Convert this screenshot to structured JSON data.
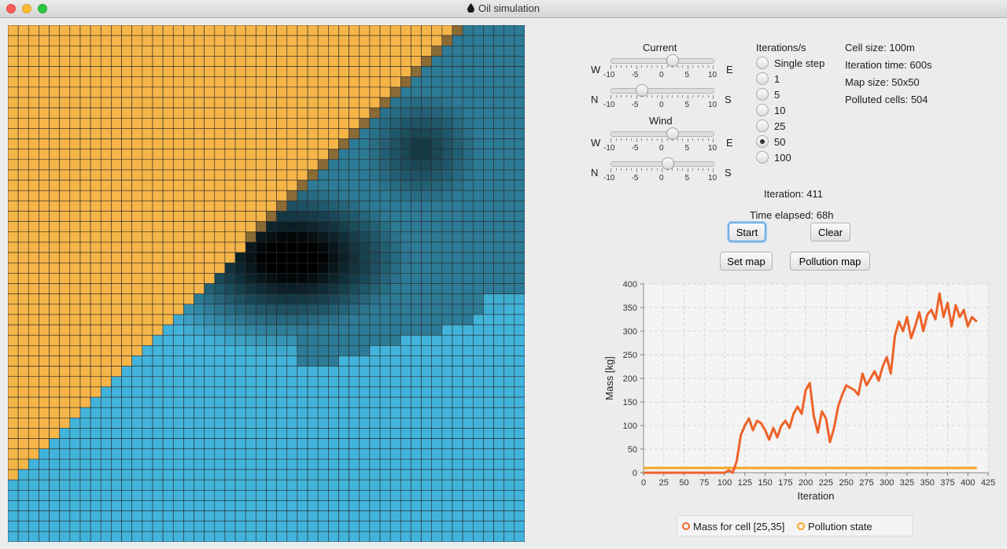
{
  "window": {
    "title": "Oil simulation"
  },
  "map": {
    "rows": 50,
    "cols": 50,
    "colors": {
      "land": "#f5b548",
      "water": "#42b4db",
      "border": "#2b2b2b"
    }
  },
  "controls": {
    "current_label": "Current",
    "wind_label": "Wind",
    "dir_w": "W",
    "dir_e": "E",
    "dir_n": "N",
    "dir_s": "S",
    "ticks": [
      "-10",
      "-5",
      "0",
      "5",
      "10"
    ],
    "current_we_value": 2,
    "current_ns_value": -4,
    "wind_we_value": 2,
    "wind_ns_value": 1
  },
  "iterations": {
    "label": "Iterations/s",
    "options": [
      "Single step",
      "1",
      "5",
      "10",
      "25",
      "50",
      "100"
    ],
    "selected": "50"
  },
  "info": {
    "cell_size": "Cell size: 100m",
    "iteration_time": "Iteration time: 600s",
    "map_size": "Map size: 50x50",
    "polluted": "Polluted cells: 504"
  },
  "status": {
    "iteration": "Iteration: 411",
    "elapsed": "Time elapsed: 68h"
  },
  "buttons": {
    "start": "Start",
    "clear": "Clear",
    "set_map": "Set map",
    "pollution_map": "Pollution map"
  },
  "legend": {
    "mass": "Mass for cell [25,35]",
    "pollution": "Pollution state",
    "mass_color": "#ee6229",
    "pollution_color": "#f5a623"
  },
  "chart_data": {
    "type": "line",
    "xlabel": "Iteration",
    "ylabel": "Mass [kg]",
    "xlim": [
      0,
      425
    ],
    "ylim": [
      0,
      400
    ],
    "xticks": [
      "0",
      "25",
      "50",
      "75",
      "100",
      "125",
      "150",
      "175",
      "200",
      "225",
      "250",
      "275",
      "300",
      "325",
      "350",
      "375",
      "400",
      "425"
    ],
    "yticks": [
      "0",
      "50",
      "100",
      "150",
      "200",
      "250",
      "300",
      "350",
      "400"
    ],
    "series": [
      {
        "name": "Mass for cell [25,35]",
        "x": [
          0,
          100,
          105,
          110,
          115,
          120,
          125,
          130,
          135,
          140,
          145,
          150,
          155,
          160,
          165,
          170,
          175,
          180,
          185,
          190,
          195,
          200,
          205,
          210,
          215,
          220,
          225,
          230,
          235,
          240,
          245,
          250,
          255,
          260,
          265,
          270,
          275,
          280,
          285,
          290,
          295,
          300,
          305,
          310,
          315,
          320,
          325,
          330,
          335,
          340,
          345,
          350,
          355,
          360,
          365,
          370,
          375,
          380,
          385,
          390,
          395,
          400,
          405,
          411
        ],
        "y": [
          0,
          0,
          5,
          0,
          25,
          80,
          100,
          115,
          90,
          110,
          105,
          90,
          70,
          95,
          75,
          100,
          110,
          95,
          125,
          140,
          125,
          175,
          190,
          120,
          85,
          130,
          115,
          65,
          95,
          140,
          165,
          185,
          180,
          175,
          165,
          210,
          185,
          200,
          215,
          195,
          225,
          245,
          210,
          290,
          320,
          300,
          330,
          285,
          310,
          340,
          300,
          335,
          345,
          325,
          380,
          330,
          360,
          310,
          355,
          330,
          345,
          310,
          330,
          320
        ]
      },
      {
        "name": "Pollution state",
        "x": [
          0,
          411
        ],
        "y": [
          10,
          10
        ]
      }
    ]
  }
}
